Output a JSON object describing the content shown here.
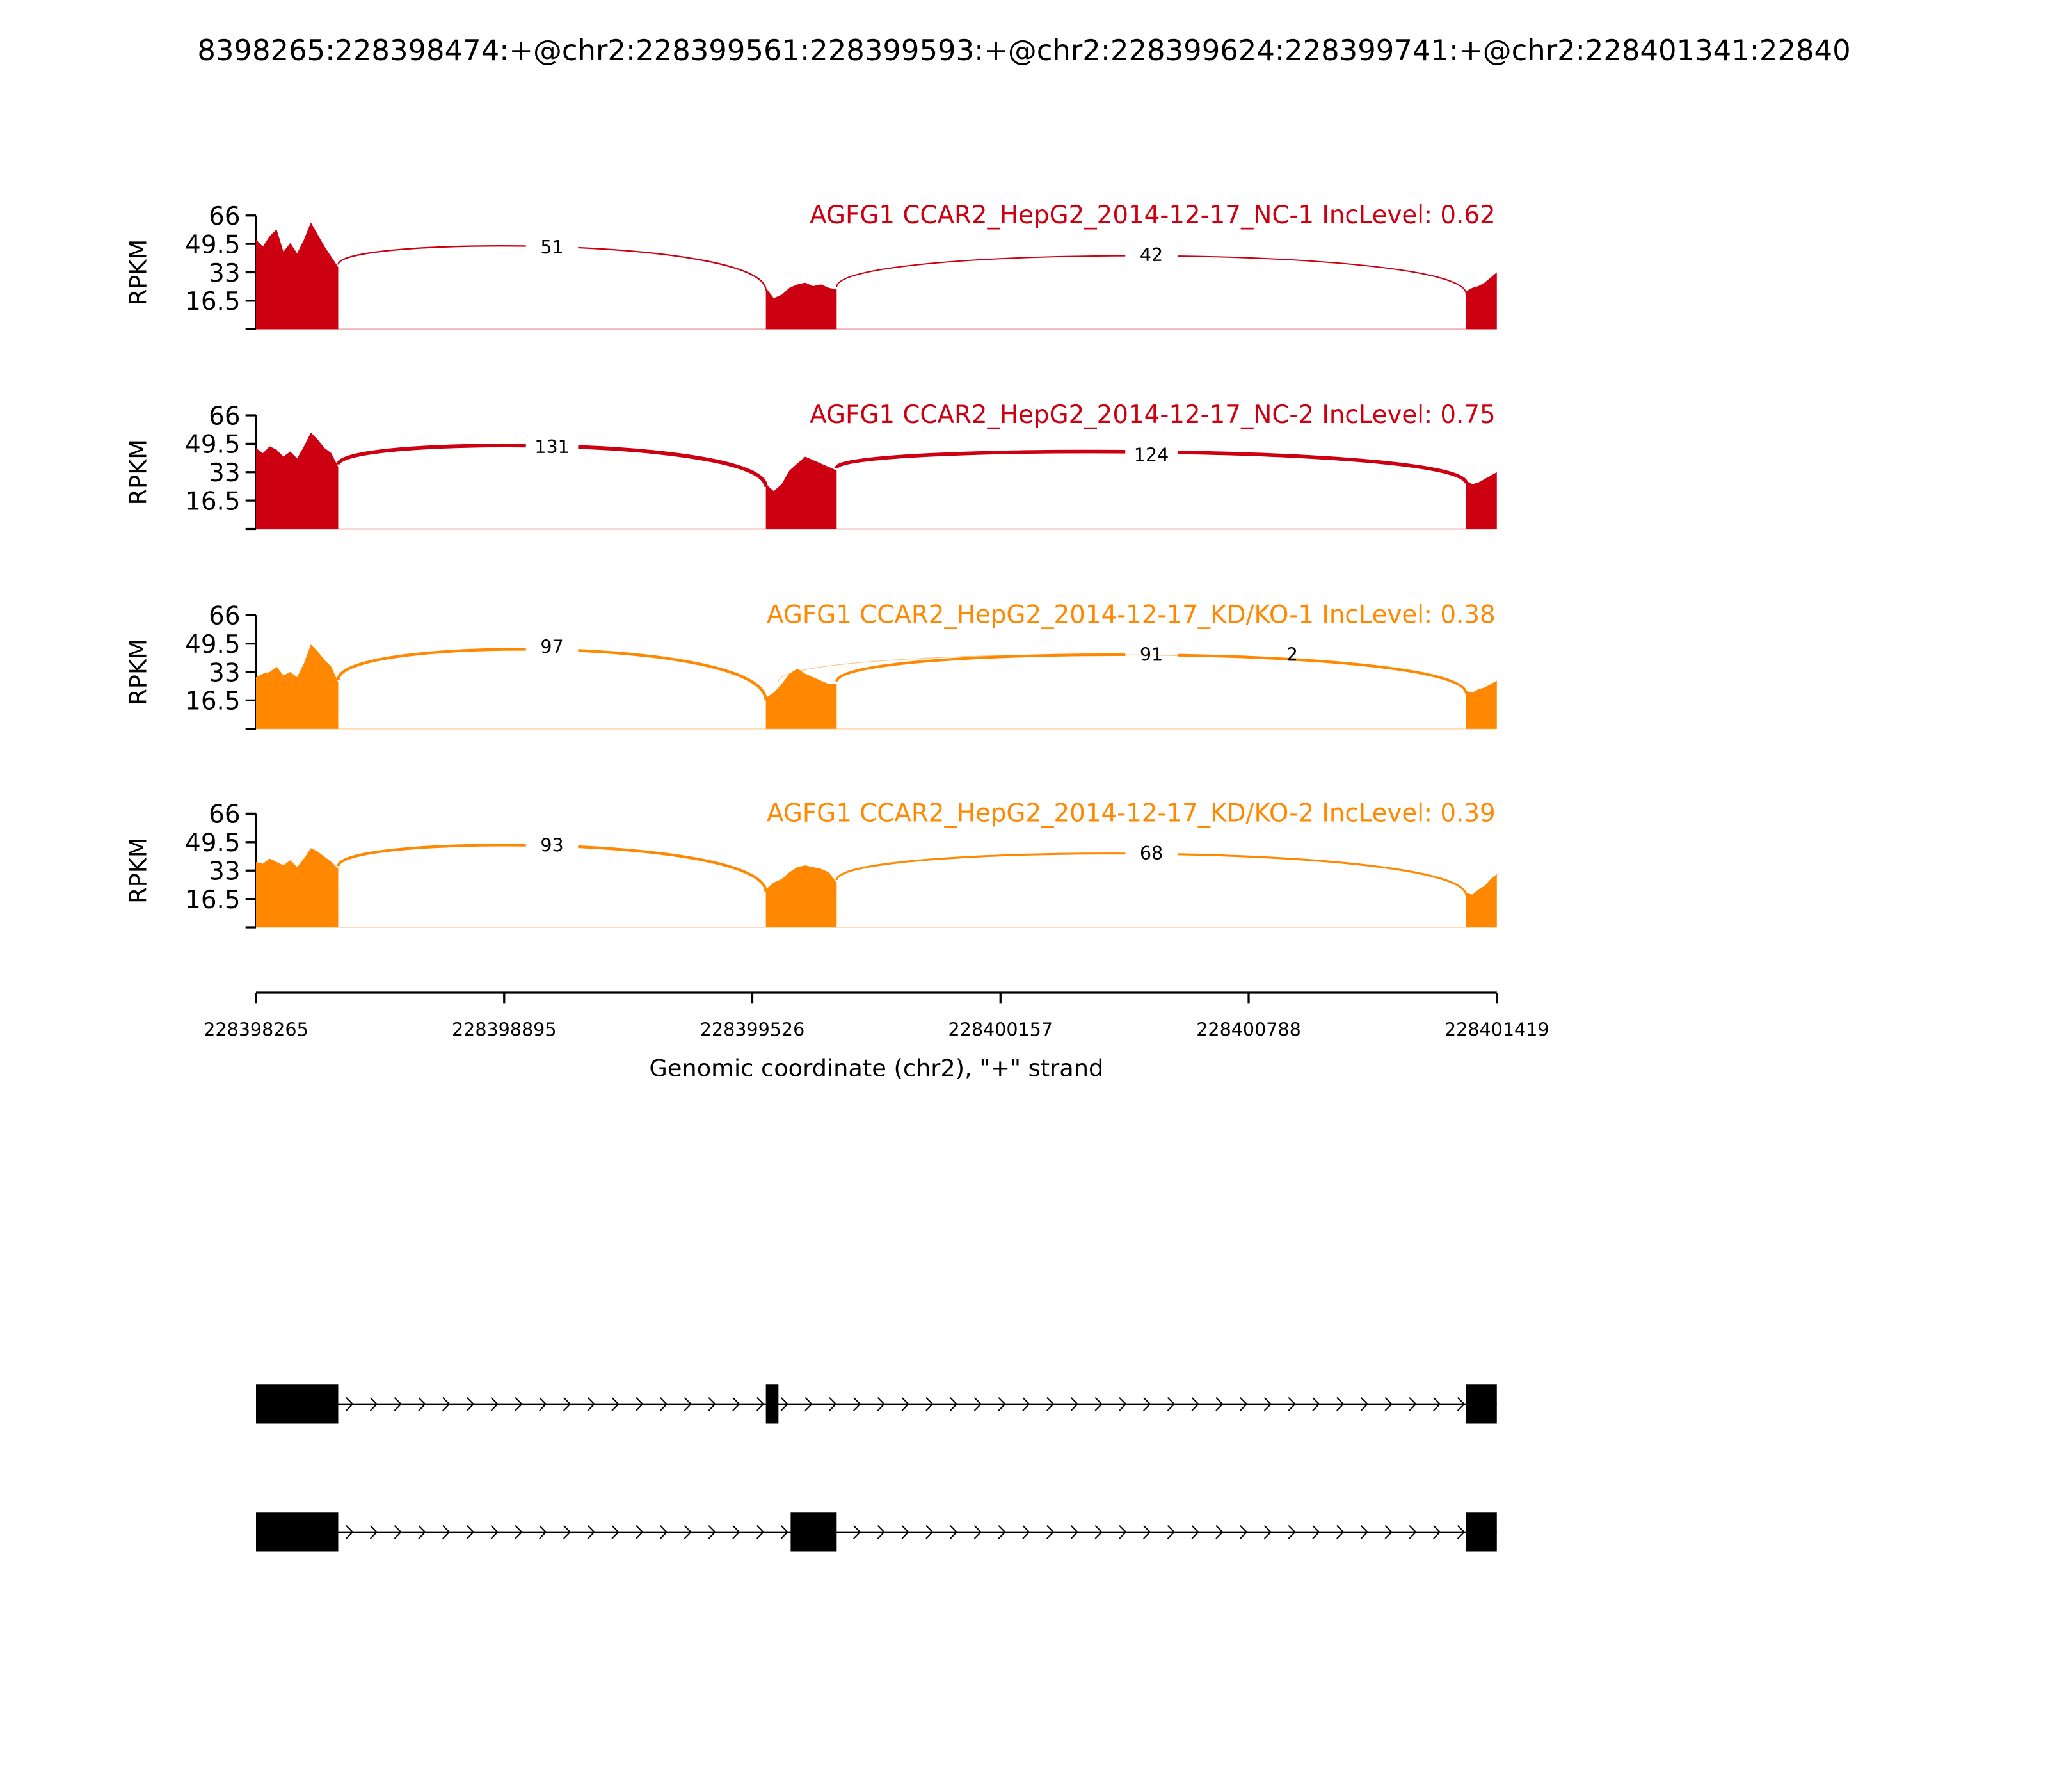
{
  "chart_data": {
    "type": "area",
    "title": "8398265:228398474:+@chr2:228399561:228399593:+@chr2:228399624:228399741:+@chr2:228401341:22840",
    "xlabel": "Genomic coordinate (chr2), \"+\" strand",
    "ylabel": "RPKM",
    "xlim": [
      228398265,
      228401419
    ],
    "xticks": [
      "228398265",
      "228398895",
      "228399526",
      "228400157",
      "228400788",
      "228401419"
    ],
    "ylim": [
      0,
      66
    ],
    "yticks": [
      "66",
      "49.5",
      "33",
      "16.5"
    ],
    "colors": {
      "NC": "#cc0011",
      "KD": "#ff8800"
    },
    "tracks": [
      {
        "label": "AGFG1 CCAR2_HepG2_2014-12-17_NC-1 IncLevel: 0.62",
        "color": "#cc0011",
        "coverage": {
          "exon1": [
            52,
            48,
            54,
            58,
            45,
            50,
            44,
            52,
            62,
            55,
            48,
            42,
            36
          ],
          "exon2_3": [
            24,
            18,
            20,
            24,
            26,
            27,
            25,
            26,
            24,
            23
          ],
          "exon4": [
            22,
            24,
            25,
            27,
            30,
            33
          ]
        },
        "junctions": [
          {
            "start": 228398474,
            "end": 228399561,
            "count": "51"
          },
          {
            "start": 228399741,
            "end": 228401341,
            "count": "42"
          }
        ]
      },
      {
        "label": "AGFG1 CCAR2_HepG2_2014-12-17_NC-2 IncLevel: 0.75",
        "color": "#cc0011",
        "coverage": {
          "exon1": [
            47,
            44,
            48,
            46,
            42,
            45,
            41,
            48,
            56,
            52,
            47,
            44,
            36
          ],
          "exon2_3": [
            26,
            22,
            26,
            34,
            38,
            42,
            40,
            38,
            36,
            34
          ],
          "exon4": [
            28,
            26,
            27,
            29,
            31,
            33
          ]
        },
        "junctions": [
          {
            "start": 228398474,
            "end": 228399561,
            "count": "131"
          },
          {
            "start": 228399741,
            "end": 228401341,
            "count": "124"
          }
        ]
      },
      {
        "label": "AGFG1 CCAR2_HepG2_2014-12-17_KD/KO-1 IncLevel: 0.38",
        "color": "#ff8800",
        "coverage": {
          "exon1": [
            30,
            32,
            33,
            36,
            31,
            33,
            30,
            38,
            49,
            45,
            40,
            36,
            27
          ],
          "exon2_3": [
            18,
            21,
            26,
            32,
            35,
            32,
            30,
            28,
            26,
            26
          ],
          "exon4": [
            22,
            21,
            23,
            24,
            26,
            28
          ]
        },
        "junctions": [
          {
            "start": 228398474,
            "end": 228399561,
            "count": "97"
          },
          {
            "start": 228399741,
            "end": 228401341,
            "count": "91"
          },
          {
            "start": 228399593,
            "end": 228401341,
            "count": "2"
          }
        ]
      },
      {
        "label": "AGFG1 CCAR2_HepG2_2014-12-17_KD/KO-2 IncLevel: 0.39",
        "color": "#ff8800",
        "coverage": {
          "exon1": [
            38,
            37,
            40,
            38,
            36,
            39,
            35,
            40,
            46,
            44,
            41,
            38,
            34
          ],
          "exon2_3": [
            22,
            26,
            28,
            32,
            35,
            36,
            35,
            34,
            32,
            26
          ],
          "exon4": [
            20,
            19,
            22,
            24,
            28,
            31
          ]
        },
        "junctions": [
          {
            "start": 228398474,
            "end": 228399561,
            "count": "93"
          },
          {
            "start": 228399741,
            "end": 228401341,
            "count": "68"
          }
        ]
      }
    ],
    "transcripts": [
      {
        "exons": [
          [
            228398265,
            228398474
          ],
          [
            228399561,
            228399593
          ],
          [
            228401341,
            228401419
          ]
        ]
      },
      {
        "exons": [
          [
            228398265,
            228398474
          ],
          [
            228399624,
            228399741
          ],
          [
            228401341,
            228401419
          ]
        ]
      }
    ]
  }
}
